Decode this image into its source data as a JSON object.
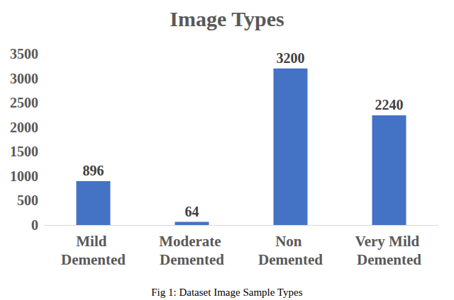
{
  "chart_data": {
    "type": "bar",
    "title": "Image Types",
    "categories": [
      "Mild Demented",
      "Moderate Demented",
      "Non Demented",
      "Very Mild Demented"
    ],
    "values": [
      896,
      64,
      3200,
      2240
    ],
    "color": "#4472c4",
    "ylim": [
      0,
      3500
    ],
    "yticks": [
      0,
      500,
      1000,
      1500,
      2000,
      2500,
      3000,
      3500
    ],
    "grid": false,
    "data_labels": true,
    "annotations": [
      "Fig 1: Dataset Image Sample Types"
    ]
  }
}
